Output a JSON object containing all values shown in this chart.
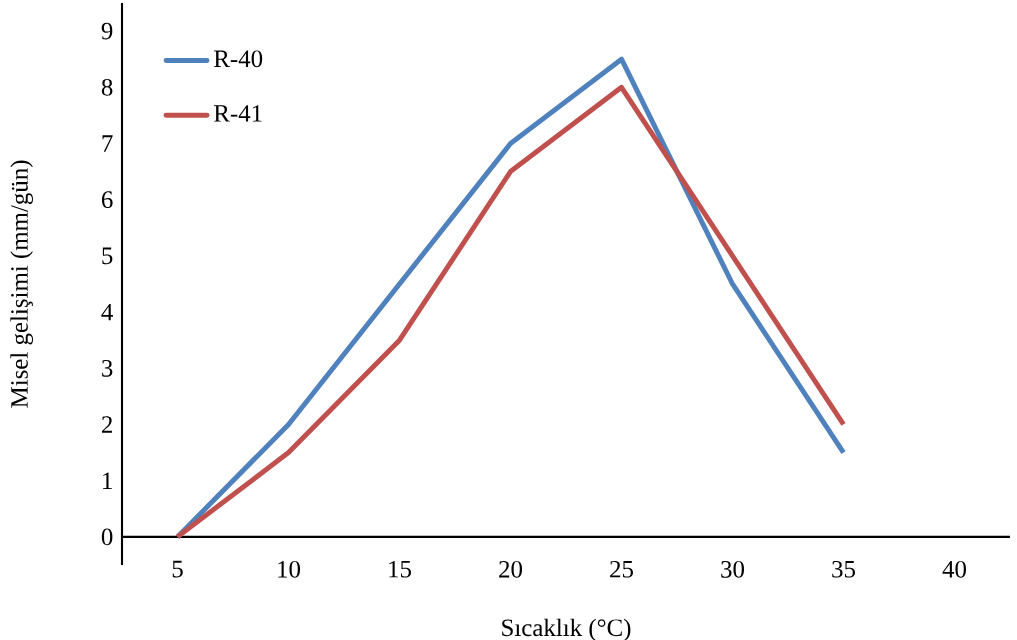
{
  "chart_data": {
    "type": "line",
    "xlabel": "Sıcaklık (°C)",
    "ylabel": "Misel gelişimi (mm/gün)",
    "categories": [
      "5",
      "10",
      "15",
      "20",
      "25",
      "30",
      "35",
      "40"
    ],
    "series": [
      {
        "name": "R-40",
        "color": "#4f81bd",
        "values": [
          0,
          2,
          4.5,
          7,
          8.5,
          4.5,
          1.5,
          null
        ]
      },
      {
        "name": "R-41",
        "color": "#c0504d",
        "values": [
          0,
          1.5,
          3.5,
          6.5,
          8,
          5,
          2,
          null
        ]
      }
    ],
    "ylim": [
      -0.5,
      9.5
    ],
    "yticks": [
      0,
      1,
      2,
      3,
      4,
      5,
      6,
      7,
      8,
      9
    ],
    "grid": false,
    "legend": "top left",
    "marker": "none",
    "line_style": "solid"
  }
}
